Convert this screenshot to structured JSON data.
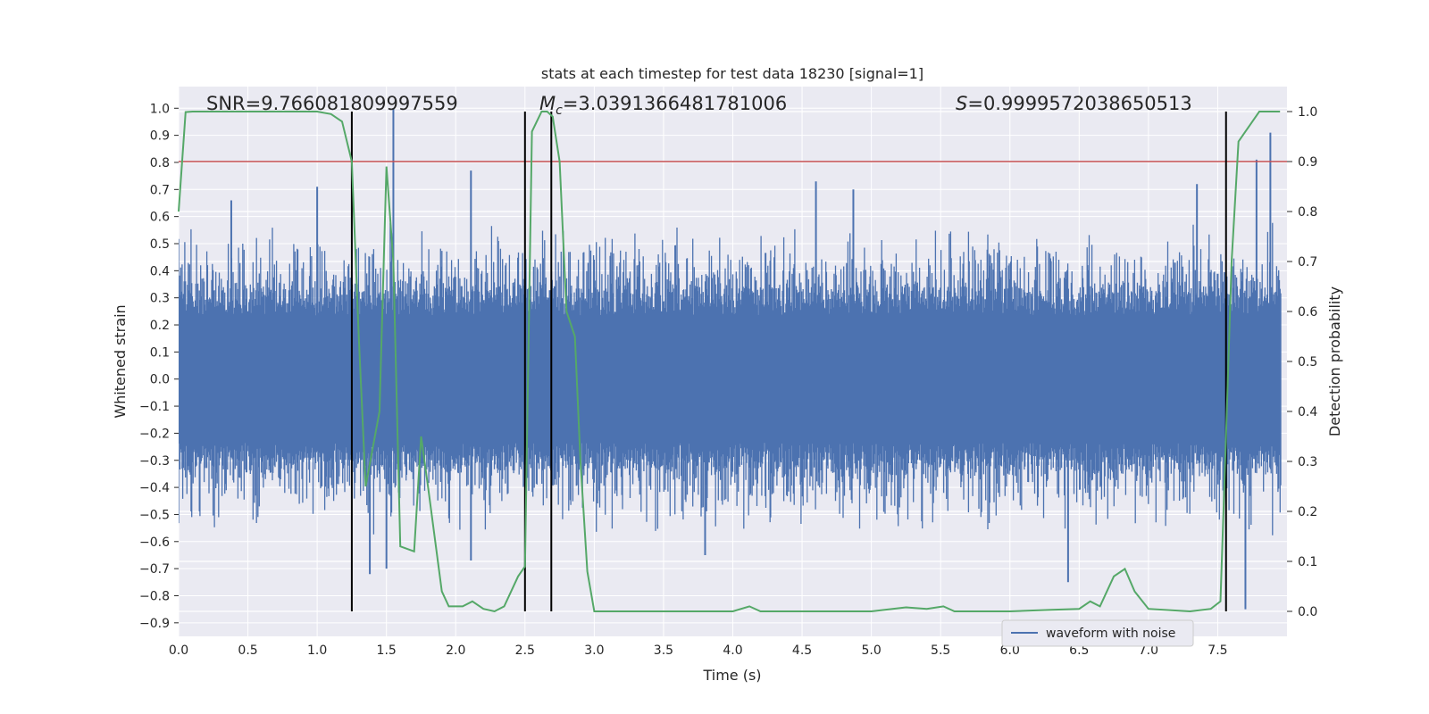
{
  "chart_data": {
    "type": "line",
    "title": "stats at each timestep for test data 18230 [signal=1]",
    "xlabel": "Time (s)",
    "ylabel_left": "Whitened strain",
    "ylabel_right": "Detection probability",
    "xlim": [
      0.0,
      8.0
    ],
    "ylim_left": [
      -0.95,
      1.08
    ],
    "ylim_right": [
      -0.05,
      1.05
    ],
    "x_ticks": [
      "0.0",
      "0.5",
      "1.0",
      "1.5",
      "2.0",
      "2.5",
      "3.0",
      "3.5",
      "4.0",
      "4.5",
      "5.0",
      "5.5",
      "6.0",
      "6.5",
      "7.0",
      "7.5"
    ],
    "y_left_ticks": [
      "-0.9",
      "-0.8",
      "-0.7",
      "-0.6",
      "-0.5",
      "-0.4",
      "-0.3",
      "-0.2",
      "-0.1",
      "0.0",
      "0.1",
      "0.2",
      "0.3",
      "0.4",
      "0.5",
      "0.6",
      "0.7",
      "0.8",
      "0.9",
      "1.0"
    ],
    "y_right_ticks": [
      "0.0",
      "0.1",
      "0.2",
      "0.3",
      "0.4",
      "0.5",
      "0.6",
      "0.7",
      "0.8",
      "0.9",
      "1.0"
    ],
    "grid": true,
    "legend_placement": "lower right",
    "colors": {
      "background": "#eaeaf2",
      "grid": "#ffffff",
      "waveform": "#4c72b0",
      "probability": "#55a868",
      "threshold": "#c44e52",
      "vlines": "#000000"
    },
    "annotations": {
      "snr": "SNR=9.766081809997559",
      "mc_symbol": "M",
      "mc_sub": "c",
      "mc_value": "=3.0391366481781006",
      "s_symbol": "S",
      "s_value": "=0.9999572038650513"
    },
    "threshold_probability": 0.9,
    "vertical_lines_x": [
      1.25,
      2.5,
      2.69,
      7.56
    ],
    "waveform": {
      "name": "waveform with noise",
      "amplitude_envelope": 0.42,
      "typical_range": [
        -0.6,
        0.6
      ],
      "spikes": [
        {
          "x": 1.55,
          "y": 1.0
        },
        {
          "x": 1.5,
          "y": -0.7
        },
        {
          "x": 1.38,
          "y": -0.72
        },
        {
          "x": 2.11,
          "y": 0.77
        },
        {
          "x": 2.11,
          "y": -0.67
        },
        {
          "x": 3.8,
          "y": -0.65
        },
        {
          "x": 4.6,
          "y": 0.73
        },
        {
          "x": 4.87,
          "y": 0.7
        },
        {
          "x": 6.42,
          "y": -0.75
        },
        {
          "x": 7.35,
          "y": 0.72
        },
        {
          "x": 7.78,
          "y": 0.81
        },
        {
          "x": 7.88,
          "y": 0.91
        },
        {
          "x": 7.7,
          "y": -0.85
        },
        {
          "x": 1.0,
          "y": 0.71
        },
        {
          "x": 0.38,
          "y": 0.66
        }
      ]
    },
    "probability_series": {
      "x": [
        0.0,
        0.05,
        0.1,
        0.2,
        0.4,
        0.6,
        0.8,
        1.0,
        1.1,
        1.18,
        1.25,
        1.3,
        1.35,
        1.45,
        1.5,
        1.55,
        1.6,
        1.7,
        1.75,
        1.8,
        1.9,
        1.95,
        2.05,
        2.12,
        2.2,
        2.28,
        2.35,
        2.45,
        2.5,
        2.55,
        2.62,
        2.66,
        2.7,
        2.75,
        2.8,
        2.86,
        2.9,
        2.95,
        3.0,
        3.5,
        4.0,
        4.12,
        4.2,
        4.5,
        5.0,
        5.25,
        5.4,
        5.52,
        5.6,
        6.0,
        6.3,
        6.5,
        6.58,
        6.65,
        6.75,
        6.83,
        6.9,
        7.0,
        7.3,
        7.45,
        7.52,
        7.56,
        7.6,
        7.65,
        7.8,
        7.95
      ],
      "y": [
        0.8,
        0.999,
        1.0,
        1.0,
        1.0,
        1.0,
        1.0,
        1.0,
        0.995,
        0.98,
        0.9,
        0.55,
        0.25,
        0.4,
        0.89,
        0.7,
        0.13,
        0.12,
        0.35,
        0.25,
        0.04,
        0.01,
        0.01,
        0.02,
        0.005,
        0.0,
        0.01,
        0.07,
        0.09,
        0.96,
        1.0,
        1.0,
        0.99,
        0.9,
        0.6,
        0.55,
        0.3,
        0.08,
        0.0,
        0.0,
        0.0,
        0.01,
        0.0,
        0.0,
        0.0,
        0.008,
        0.005,
        0.01,
        0.0,
        0.0,
        0.003,
        0.005,
        0.02,
        0.01,
        0.07,
        0.085,
        0.04,
        0.005,
        0.0,
        0.005,
        0.02,
        0.35,
        0.7,
        0.94,
        1.0,
        1.0
      ]
    }
  }
}
